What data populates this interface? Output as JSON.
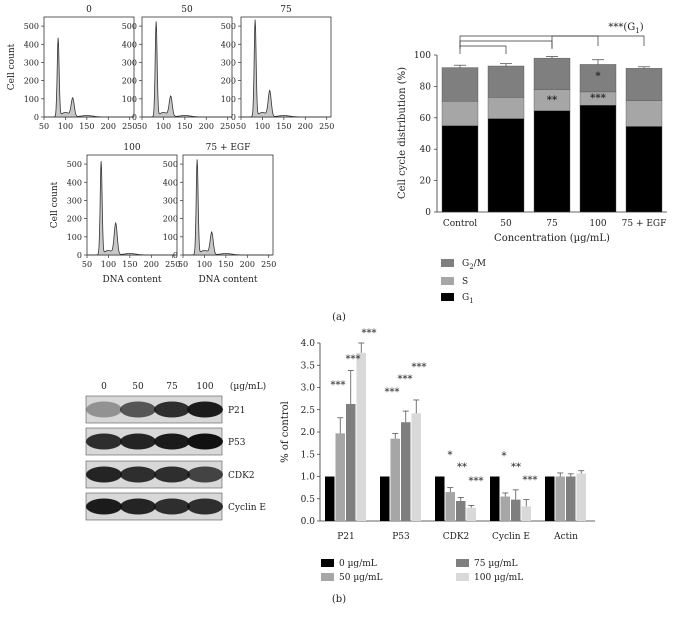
{
  "histograms": {
    "ylabel": "Cell count",
    "xlabel": "DNA content",
    "xticks": [
      "50",
      "100",
      "150",
      "200",
      "250"
    ],
    "yticks": [
      "0",
      "100",
      "200",
      "300",
      "400",
      "500"
    ],
    "panels": [
      {
        "title": "0",
        "peak1": 430,
        "peak2": 100
      },
      {
        "title": "50",
        "peak1": 520,
        "peak2": 110
      },
      {
        "title": "75",
        "peak1": 530,
        "peak2": 140
      },
      {
        "title": "100",
        "peak1": 510,
        "peak2": 170
      },
      {
        "title": "75 + EGF",
        "peak1": 520,
        "peak2": 120
      }
    ]
  },
  "panel_a_label": "(a)",
  "panel_b_label": "(b)",
  "western": {
    "doses": [
      "0",
      "50",
      "75",
      "100"
    ],
    "unit": "(µg/mL)",
    "proteins": [
      "P21",
      "P53",
      "CDK2",
      "Cyclin E"
    ]
  },
  "chart_data": [
    {
      "type": "bar",
      "stacked": true,
      "categories": [
        "Control",
        "50",
        "75",
        "100",
        "75 + EGF"
      ],
      "series": [
        {
          "name": "G1",
          "values": [
            55,
            59.5,
            64.5,
            68,
            54.5
          ],
          "err": [
            1,
            1.5,
            1.5,
            1.5,
            0.5
          ]
        },
        {
          "name": "S",
          "values": [
            15.5,
            13.5,
            13.5,
            8.5,
            16.5
          ],
          "err": [
            1,
            1,
            1.5,
            2,
            1
          ]
        },
        {
          "name": "G2/M",
          "values": [
            21.5,
            20,
            20,
            17.5,
            20.5
          ],
          "err": [
            1.5,
            1.5,
            1,
            3,
            1
          ]
        }
      ],
      "colors": {
        "G1": "#000000",
        "S": "#a6a6a6",
        "G2/M": "#7f7f7f"
      },
      "significance": [
        {
          "category": "75",
          "label": "**"
        },
        {
          "category": "100",
          "label": "***"
        },
        {
          "category": "100",
          "label": "*"
        }
      ],
      "bracket_label": "***(G1)",
      "ylabel": "Cell cycle distribution (%)",
      "xlabel": "Concentration (µg/mL)",
      "ylim": [
        0,
        100
      ],
      "yticks": [
        "0",
        "20",
        "40",
        "60",
        "80",
        "100"
      ],
      "legend": [
        "G2/M",
        "S",
        "G1"
      ]
    },
    {
      "type": "bar",
      "categories": [
        "P21",
        "P53",
        "CDK2",
        "Cyclin E",
        "Actin"
      ],
      "series": [
        {
          "name": "0 µg/mL",
          "values": [
            1.0,
            1.0,
            1.0,
            1.0,
            1.0
          ],
          "err": [
            0,
            0,
            0,
            0,
            0
          ]
        },
        {
          "name": "50 µg/mL",
          "values": [
            1.97,
            1.85,
            0.65,
            0.55,
            1.0
          ],
          "err": [
            0.35,
            0.12,
            0.1,
            0.08,
            0.08
          ]
        },
        {
          "name": "75 µg/mL",
          "values": [
            2.63,
            2.22,
            0.45,
            0.48,
            1.0
          ],
          "err": [
            0.75,
            0.25,
            0.08,
            0.22,
            0.06
          ]
        },
        {
          "name": "100 µg/mL",
          "values": [
            3.78,
            2.42,
            0.3,
            0.33,
            1.07
          ],
          "err": [
            0.22,
            0.3,
            0.05,
            0.15,
            0.06
          ]
        }
      ],
      "colors": [
        "#000000",
        "#a6a6a6",
        "#7f7f7f",
        "#d9d9d9"
      ],
      "significance": [
        {
          "category": "P21",
          "labels": [
            "***",
            "***",
            "***"
          ]
        },
        {
          "category": "P53",
          "labels": [
            "***",
            "***",
            "***"
          ]
        },
        {
          "category": "CDK2",
          "labels": [
            "*",
            "**",
            "***"
          ]
        },
        {
          "category": "Cyclin E",
          "labels": [
            "*",
            "**",
            "***"
          ]
        }
      ],
      "ylabel": "% of control",
      "ylim": [
        0,
        4.0
      ],
      "yticks": [
        "0.0",
        "0.5",
        "1.0",
        "1.5",
        "2.0",
        "2.5",
        "3.0",
        "3.5",
        "4.0"
      ]
    }
  ]
}
